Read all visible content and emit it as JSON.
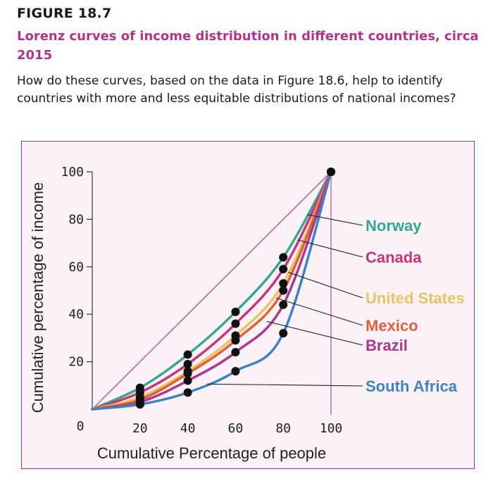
{
  "figure": {
    "label": "FIGURE 18.7",
    "title": "Lorenz curves of income distribution in different countries, circa 2015",
    "question": "How do these curves, based on the data in Figure 18.6, help to identify countries with more and less equitable distributions of national incomes?"
  },
  "chart_data": {
    "type": "line",
    "xlabel": "Cumulative Percentage of people",
    "ylabel": "Cumulative percentage of income",
    "xlim": [
      0,
      100
    ],
    "ylim": [
      0,
      100
    ],
    "x_ticks": [
      20,
      40,
      60,
      80,
      100
    ],
    "y_ticks": [
      20,
      40,
      60,
      80,
      100
    ],
    "origin_label": "0",
    "grid": false,
    "legend_placement": "right, labels connected to curves by leader lines",
    "equality_line": {
      "x": [
        0,
        100
      ],
      "y": [
        0,
        100
      ],
      "color": "#c0508a"
    },
    "series": [
      {
        "name": "Norway",
        "color": "#3aa58f",
        "x": [
          0,
          20,
          40,
          60,
          80,
          100
        ],
        "y": [
          0,
          9,
          23,
          41,
          64,
          100
        ]
      },
      {
        "name": "Canada",
        "color": "#c6357a",
        "x": [
          0,
          20,
          40,
          60,
          80,
          100
        ],
        "y": [
          0,
          7,
          19,
          36,
          59,
          100
        ]
      },
      {
        "name": "United States",
        "color": "#e8c462",
        "x": [
          0,
          20,
          40,
          60,
          80,
          100
        ],
        "y": [
          0,
          5,
          16,
          31,
          53,
          100
        ]
      },
      {
        "name": "Mexico",
        "color": "#e0603a",
        "x": [
          0,
          20,
          40,
          60,
          80,
          100
        ],
        "y": [
          0,
          4,
          15,
          29,
          50,
          100
        ]
      },
      {
        "name": "Brazil",
        "color": "#a9398f",
        "x": [
          0,
          20,
          40,
          60,
          80,
          100
        ],
        "y": [
          0,
          3,
          12,
          24,
          44,
          100
        ]
      },
      {
        "name": "South Africa",
        "color": "#3f82c0",
        "x": [
          0,
          20,
          40,
          60,
          80,
          100
        ],
        "y": [
          0,
          2,
          7,
          16,
          32,
          100
        ]
      }
    ]
  }
}
